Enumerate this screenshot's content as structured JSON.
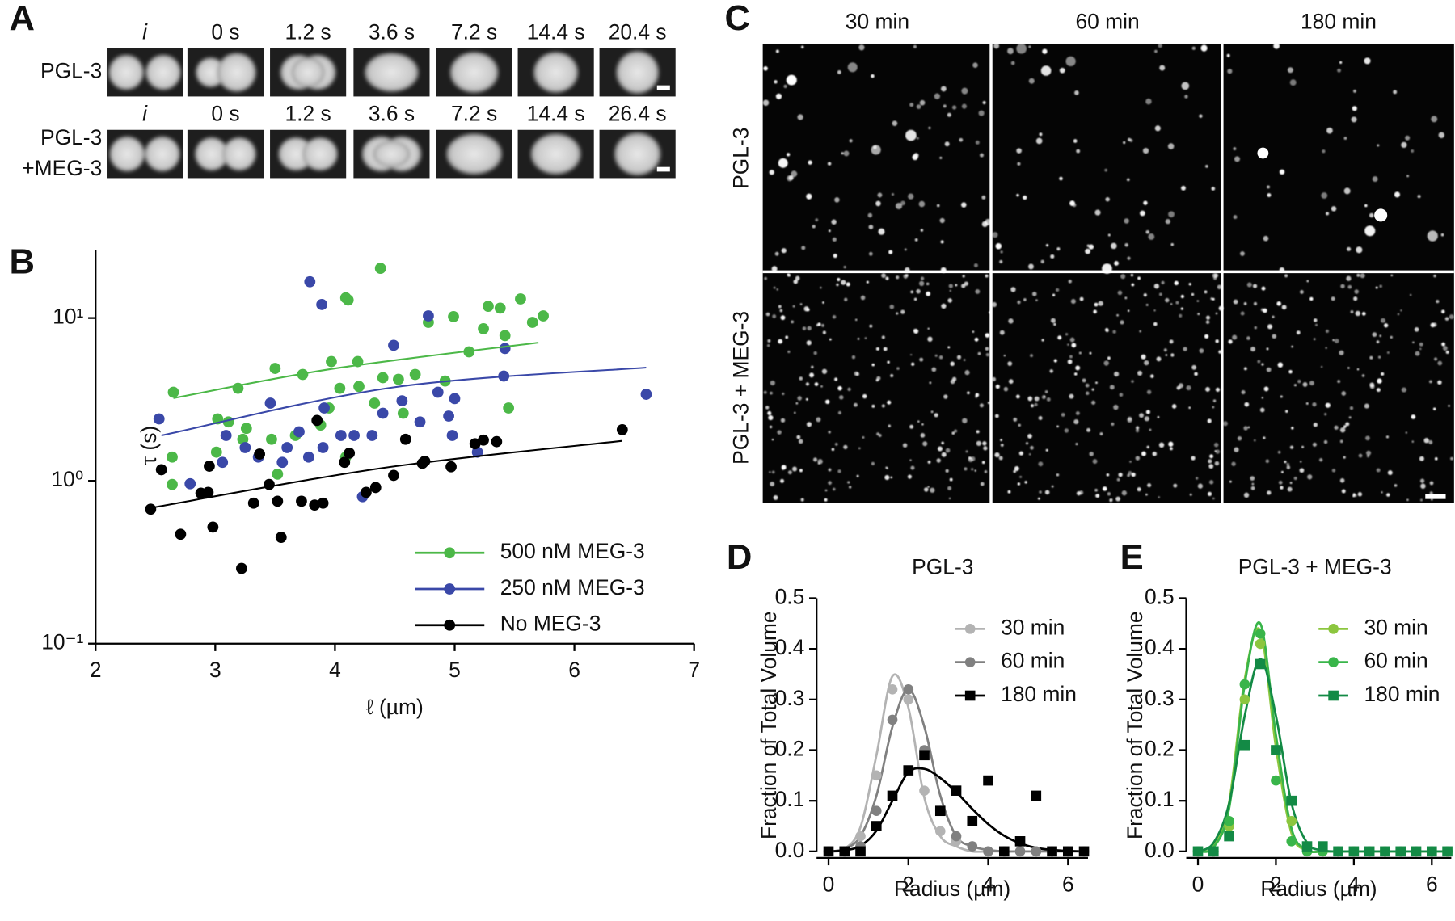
{
  "panel_a": {
    "letter": "A",
    "rows": [
      {
        "label": [
          "PGL-3"
        ],
        "times": [
          "i",
          "0 s",
          "1.2 s",
          "3.6 s",
          "7.2 s",
          "14.4 s",
          "20.4 s"
        ]
      },
      {
        "label": [
          "PGL-3",
          "+MEG-3"
        ],
        "times": [
          "i",
          "0 s",
          "1.2 s",
          "3.6 s",
          "7.2 s",
          "14.4 s",
          "26.4 s"
        ]
      }
    ]
  },
  "panel_c": {
    "letter": "C",
    "columns": [
      "30 min",
      "60 min",
      "180 min"
    ],
    "rows": [
      "PGL-3",
      "PGL-3 + MEG-3"
    ]
  },
  "chart_data": [
    {
      "letter": "B",
      "type": "scatter",
      "xlabel": "ℓ (µm)",
      "ylabel": "τ (s)",
      "log_y": true,
      "legend": "lower right",
      "xlim": [
        2,
        7
      ],
      "xticks": [
        2,
        3,
        4,
        5,
        6,
        7
      ],
      "ylim": [
        0.1,
        26
      ],
      "yticks": [
        {
          "value": 0.1,
          "label": "10⁻¹"
        },
        {
          "value": 1,
          "label": "10⁰"
        },
        {
          "value": 10,
          "label": "10¹"
        }
      ],
      "series": [
        {
          "name": "500 nM MEG-3",
          "color": "#4cb848",
          "marker": "circle",
          "x": [
            2.65,
            2.64,
            2.64,
            3.19,
            3.02,
            3.11,
            3.26,
            3.01,
            3.23,
            3.5,
            3.52,
            3.47,
            3.67,
            3.73,
            3.88,
            3.95,
            3.97,
            4.09,
            4.11,
            4.04,
            4.19,
            4.2,
            4.09,
            4.38,
            4.33,
            4.4,
            4.53,
            4.57,
            4.67,
            4.78,
            4.92,
            4.99,
            5.12,
            5.24,
            5.28,
            5.38,
            5.45,
            5.42,
            5.55,
            5.65,
            5.74
          ],
          "values": [
            3.5,
            1.4,
            0.95,
            3.7,
            2.4,
            2.3,
            2.1,
            1.5,
            1.8,
            4.9,
            1.1,
            1.8,
            1.9,
            4.5,
            2.2,
            2.8,
            5.4,
            13.3,
            12.9,
            3.7,
            5.4,
            3.8,
            1.4,
            20.2,
            3.0,
            4.3,
            4.2,
            2.6,
            4.5,
            9.4,
            4.1,
            10.2,
            6.2,
            8.6,
            11.8,
            11.5,
            2.8,
            7.8,
            13.1,
            9.4,
            10.3
          ],
          "fit": {
            "x": [
              2.65,
              4,
              5.7
            ],
            "values": [
              3.22,
              4.9,
              7.06
            ]
          }
        },
        {
          "name": "250 nM MEG-3",
          "color": "#3a48a8",
          "marker": "circle",
          "x": [
            2.53,
            2.79,
            3.06,
            3.09,
            3.25,
            3.36,
            3.46,
            3.56,
            3.6,
            3.7,
            3.79,
            3.89,
            3.78,
            3.91,
            3.9,
            4.05,
            4.16,
            4.23,
            4.31,
            4.4,
            4.49,
            4.56,
            4.71,
            4.78,
            4.86,
            4.95,
            5.0,
            4.98,
            5.19,
            5.42,
            5.41,
            6.6
          ],
          "values": [
            2.4,
            0.96,
            1.3,
            1.9,
            1.6,
            1.4,
            3.0,
            1.3,
            1.6,
            2.0,
            16.7,
            12.1,
            1.4,
            2.8,
            1.6,
            1.9,
            1.9,
            0.8,
            1.9,
            2.6,
            6.8,
            3.1,
            2.3,
            10.3,
            3.5,
            2.5,
            3.2,
            1.9,
            1.5,
            6.5,
            4.4,
            3.4
          ],
          "fit": {
            "x": [
              2.55,
              4.5,
              6.6
            ],
            "values": [
              1.9,
              3.76,
              4.96
            ]
          }
        },
        {
          "name": "No MEG-3",
          "color": "#000000",
          "marker": "circle",
          "x": [
            2.46,
            2.55,
            2.71,
            2.88,
            2.95,
            2.98,
            2.94,
            3.22,
            3.32,
            3.37,
            3.45,
            3.52,
            3.55,
            3.72,
            3.83,
            3.9,
            3.85,
            4.08,
            4.12,
            4.26,
            4.34,
            4.49,
            4.59,
            4.73,
            4.75,
            4.97,
            5.17,
            5.24,
            5.35,
            6.4
          ],
          "values": [
            0.67,
            1.17,
            0.47,
            0.84,
            1.23,
            0.52,
            0.85,
            0.29,
            0.73,
            1.46,
            0.95,
            0.75,
            0.45,
            0.75,
            0.71,
            0.73,
            2.35,
            1.3,
            1.48,
            0.85,
            0.91,
            1.08,
            1.8,
            1.28,
            1.32,
            1.22,
            1.69,
            1.78,
            1.74,
            2.06
          ],
          "fit": {
            "x": [
              2.45,
              4.4,
              6.4
            ],
            "values": [
              0.68,
              1.2,
              1.76
            ]
          }
        }
      ]
    },
    {
      "letter": "D",
      "type": "scatter",
      "title": "PGL-3",
      "xlabel": "Radius (µm)",
      "ylabel": "Fraction of Total Volume",
      "legend": "upper right",
      "xlim": [
        -0.3,
        6.5
      ],
      "xticks": [
        0,
        2,
        4,
        6
      ],
      "ylim": [
        0,
        0.5
      ],
      "yticks": [
        {
          "value": 0,
          "label": "0.0"
        },
        0.1,
        0.2,
        0.3,
        0.4,
        0.5
      ],
      "x": [
        0,
        0.4,
        0.8,
        1.2,
        1.6,
        2.0,
        2.4,
        2.8,
        3.2,
        3.6,
        4.0,
        4.4,
        4.8,
        5.2,
        5.6,
        6.0,
        6.4
      ],
      "series": [
        {
          "name": "30 min",
          "color": "#b3b3b3",
          "marker": "circle",
          "values": [
            0,
            0,
            0.03,
            0.15,
            0.32,
            0.3,
            0.12,
            0.04,
            0.02,
            0.01,
            0,
            0,
            0,
            0,
            0,
            0,
            0
          ],
          "fit": [
            0,
            0.005,
            0.048,
            0.19,
            0.346,
            0.284,
            0.106,
            0.03,
            0.01,
            0,
            0,
            0,
            0,
            0,
            0,
            0,
            0
          ]
        },
        {
          "name": "60 min",
          "color": "#808080",
          "marker": "circle",
          "values": [
            0,
            0,
            0.01,
            0.08,
            0.26,
            0.32,
            0.2,
            0.08,
            0.03,
            0.01,
            0,
            0,
            0,
            0,
            0,
            0,
            0
          ],
          "fit": [
            0,
            0.005,
            0.03,
            0.11,
            0.246,
            0.32,
            0.246,
            0.11,
            0.03,
            0.01,
            0.003,
            0,
            0,
            0,
            0,
            0,
            0
          ]
        },
        {
          "name": "180 min",
          "color": "#000000",
          "marker": "square",
          "values": [
            0,
            0,
            0,
            0.05,
            0.11,
            0.16,
            0.19,
            0.08,
            0.12,
            0.06,
            0.14,
            0,
            0.02,
            0.11,
            0,
            0,
            0
          ],
          "fit": [
            0,
            0.002,
            0.011,
            0.041,
            0.1,
            0.156,
            0.163,
            0.145,
            0.117,
            0.084,
            0.054,
            0.031,
            0.016,
            0.007,
            0.003,
            0.001,
            0
          ]
        }
      ]
    },
    {
      "letter": "E",
      "type": "scatter",
      "title": "PGL-3 + MEG-3",
      "xlabel": "Radius (µm)",
      "ylabel": "Fraction of Total Volume",
      "legend": "upper right",
      "xlim": [
        -0.3,
        6.5
      ],
      "xticks": [
        0,
        2,
        4,
        6
      ],
      "ylim": [
        0,
        0.5
      ],
      "yticks": [
        {
          "value": 0,
          "label": "0.0"
        },
        0.1,
        0.2,
        0.3,
        0.4,
        0.5
      ],
      "x": [
        0,
        0.4,
        0.8,
        1.2,
        1.6,
        2.0,
        2.4,
        2.8,
        3.2,
        3.6,
        4.0,
        4.4,
        4.8,
        5.2,
        5.6,
        6.0,
        6.4
      ],
      "series": [
        {
          "name": "30 min",
          "color": "#8cc63f",
          "marker": "circle",
          "values": [
            0,
            0,
            0.05,
            0.3,
            0.41,
            0.2,
            0.06,
            0.01,
            0,
            0,
            0,
            0,
            0,
            0,
            0,
            0,
            0
          ],
          "fit": [
            0,
            0.01,
            0.097,
            0.34,
            0.436,
            0.206,
            0.036,
            0.002,
            0,
            0,
            0,
            0,
            0,
            0,
            0,
            0,
            0
          ]
        },
        {
          "name": "60 min",
          "color": "#39b54a",
          "marker": "circle",
          "values": [
            0,
            0,
            0.06,
            0.33,
            0.43,
            0.14,
            0.02,
            0,
            0,
            0,
            0,
            0,
            0,
            0,
            0,
            0,
            0
          ],
          "fit": [
            0,
            0.008,
            0.085,
            0.33,
            0.45,
            0.23,
            0.045,
            0.003,
            0,
            0,
            0,
            0,
            0,
            0,
            0,
            0,
            0
          ]
        },
        {
          "name": "180 min",
          "color": "#138a45",
          "marker": "square",
          "values": [
            0,
            0,
            0.03,
            0.21,
            0.37,
            0.2,
            0.1,
            0.01,
            0.01,
            0,
            0,
            0,
            0,
            0,
            0,
            0,
            0
          ],
          "fit": [
            0,
            0.017,
            0.095,
            0.268,
            0.38,
            0.268,
            0.095,
            0.017,
            0.002,
            0,
            0,
            0,
            0,
            0,
            0,
            0,
            0
          ]
        }
      ]
    }
  ]
}
